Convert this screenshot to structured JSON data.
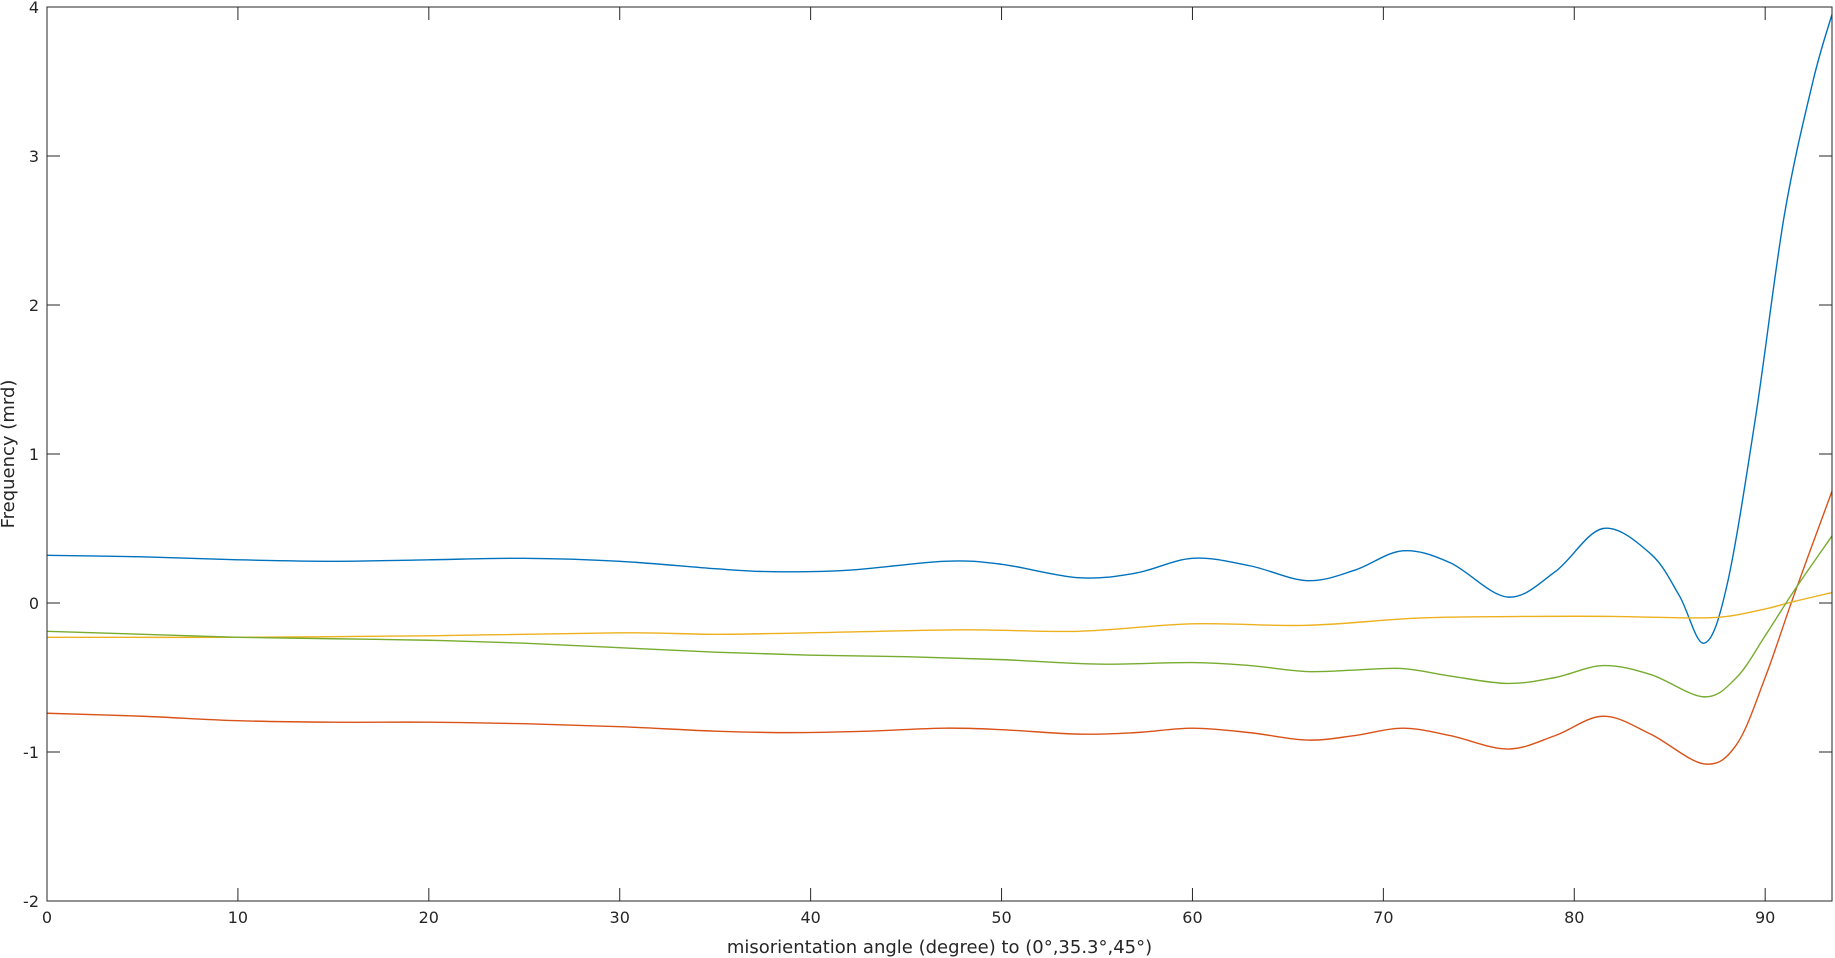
{
  "chart_data": {
    "type": "line",
    "title": "",
    "xlabel": "misorientation angle (degree) to (0°,35.3°,45°)",
    "ylabel": "Frequency (mrd)",
    "xlim": [
      0,
      93.5
    ],
    "ylim": [
      -2,
      4
    ],
    "xticks": [
      0,
      10,
      20,
      30,
      40,
      50,
      60,
      70,
      80,
      90
    ],
    "yticks": [
      -2,
      -1,
      0,
      1,
      2,
      3,
      4
    ],
    "grid": false,
    "legend": "none",
    "series": [
      {
        "color": "#0072BD",
        "x": [
          0,
          5,
          10,
          15,
          20,
          25,
          30,
          35,
          38,
          42,
          47,
          50,
          54,
          57,
          60,
          63,
          66,
          68.5,
          71,
          73.5,
          76.5,
          79,
          81.5,
          84,
          85.5,
          86.8,
          88,
          89.5,
          91,
          92.5,
          93.5
        ],
        "y": [
          0.32,
          0.31,
          0.29,
          0.28,
          0.29,
          0.3,
          0.28,
          0.23,
          0.21,
          0.22,
          0.28,
          0.26,
          0.17,
          0.2,
          0.3,
          0.25,
          0.15,
          0.22,
          0.35,
          0.27,
          0.04,
          0.21,
          0.5,
          0.33,
          0.05,
          -0.27,
          0.12,
          1.25,
          2.6,
          3.5,
          3.95
        ]
      },
      {
        "color": "#D95319",
        "x": [
          0,
          5,
          10,
          15,
          20,
          25,
          30,
          35,
          39,
          43,
          47,
          50,
          54,
          57,
          60,
          63,
          66,
          68.5,
          71,
          73.5,
          76.5,
          79,
          81.5,
          84,
          86.8,
          88.5,
          90,
          91.5,
          93.5
        ],
        "y": [
          -0.74,
          -0.76,
          -0.79,
          -0.8,
          -0.8,
          -0.81,
          -0.83,
          -0.86,
          -0.87,
          -0.86,
          -0.84,
          -0.85,
          -0.88,
          -0.87,
          -0.84,
          -0.87,
          -0.92,
          -0.89,
          -0.84,
          -0.89,
          -0.98,
          -0.89,
          -0.76,
          -0.88,
          -1.08,
          -0.95,
          -0.5,
          0.05,
          0.75
        ]
      },
      {
        "color": "#EDB120",
        "x": [
          0,
          10,
          20,
          30,
          35,
          40,
          48,
          54,
          60,
          66,
          72,
          78,
          82,
          86,
          88,
          90,
          91.5,
          93.5
        ],
        "y": [
          -0.23,
          -0.23,
          -0.22,
          -0.2,
          -0.21,
          -0.2,
          -0.18,
          -0.19,
          -0.14,
          -0.15,
          -0.1,
          -0.09,
          -0.09,
          -0.1,
          -0.09,
          -0.04,
          0.01,
          0.07
        ]
      },
      {
        "color": "#77AC30",
        "x": [
          0,
          5,
          10,
          15,
          20,
          25,
          30,
          35,
          40,
          45,
          50,
          55,
          60,
          63,
          66,
          68.5,
          71,
          73.5,
          76.5,
          79,
          81.5,
          84,
          86.8,
          88.5,
          90,
          91.5,
          93.5
        ],
        "y": [
          -0.19,
          -0.21,
          -0.23,
          -0.24,
          -0.25,
          -0.27,
          -0.3,
          -0.33,
          -0.35,
          -0.36,
          -0.38,
          -0.41,
          -0.4,
          -0.42,
          -0.46,
          -0.45,
          -0.44,
          -0.49,
          -0.54,
          -0.5,
          -0.42,
          -0.48,
          -0.63,
          -0.5,
          -0.22,
          0.08,
          0.45
        ]
      }
    ]
  }
}
